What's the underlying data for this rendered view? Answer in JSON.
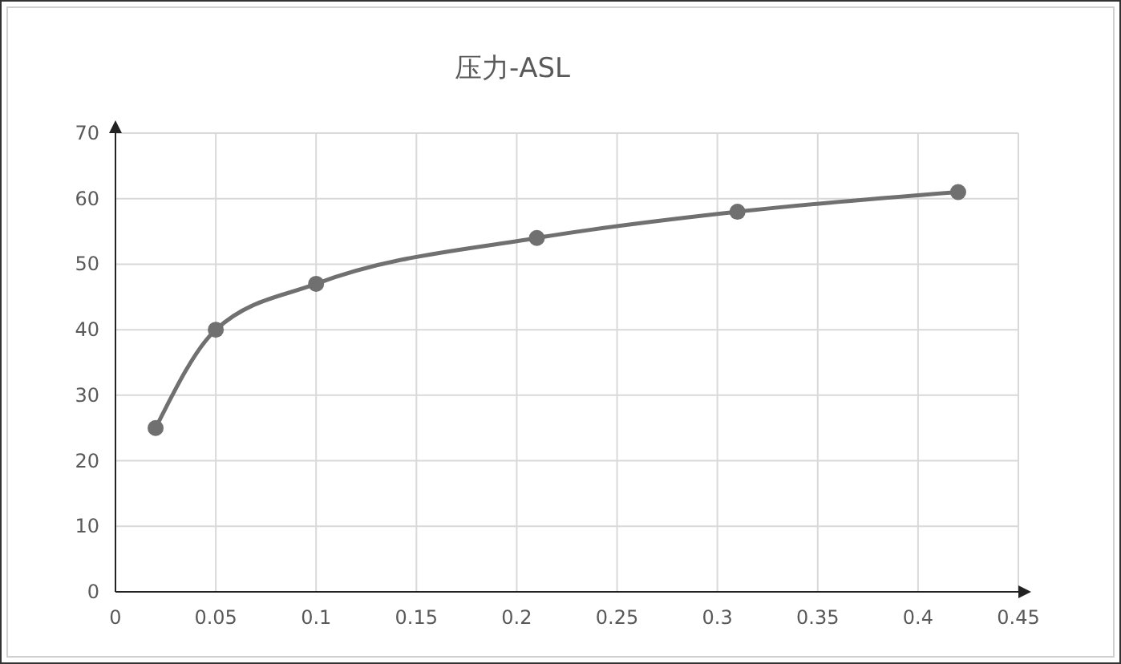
{
  "chart_data": {
    "type": "line",
    "title": "压力-ASL",
    "x": [
      0.02,
      0.05,
      0.1,
      0.21,
      0.31,
      0.42
    ],
    "series": [
      {
        "color": "#707070",
        "values": [
          25,
          40,
          47,
          54,
          58,
          61
        ]
      }
    ],
    "xlim": [
      0,
      0.45
    ],
    "xticks": [
      0,
      0.05,
      0.1,
      0.15,
      0.2,
      0.25,
      0.3,
      0.35,
      0.4,
      0.45
    ],
    "ylim": [
      0,
      70
    ],
    "yticks": [
      0,
      10,
      20,
      30,
      40,
      50,
      60,
      70
    ],
    "grid": true,
    "marker": "circle",
    "line_style": "solid"
  }
}
